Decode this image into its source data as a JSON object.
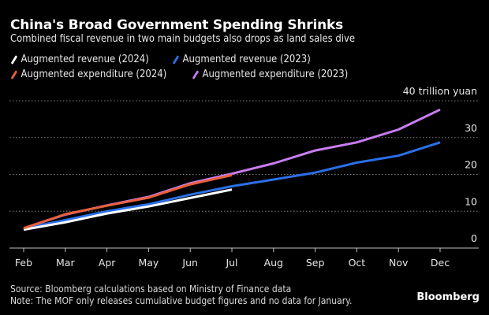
{
  "header": {
    "title": "China's Broad Government Spending Shrinks",
    "subtitle": "Combined fiscal revenue in two main budgets also drops as land sales dive"
  },
  "footer": {
    "source": "Source: Bloomberg calculations based on Ministry of Finance data",
    "note": "Note: The MOF only releases cumulative budget figures and no data for January.",
    "brand": "Bloomberg"
  },
  "chart_data": {
    "type": "line",
    "title": "China's Broad Government Spending Shrinks",
    "subtitle": "Combined fiscal revenue in two main budgets also drops as land sales dive",
    "xlabel": "",
    "ylabel": "trillion yuan",
    "y_unit_label": "40 trillion yuan",
    "ylim": [
      0,
      40
    ],
    "yticks": [
      0,
      10,
      20,
      30,
      40
    ],
    "ytick_labels": [
      "0",
      "10",
      "20",
      "30",
      "40 trillion yuan"
    ],
    "grid": true,
    "legend_position": "top-left",
    "categories": [
      "Feb",
      "Mar",
      "Apr",
      "May",
      "Jun",
      "Jul",
      "Aug",
      "Sep",
      "Oct",
      "Nov",
      "Dec"
    ],
    "series": [
      {
        "name": "Augmented revenue (2023)",
        "color": "#2b6fe8",
        "values": [
          5.3,
          7.6,
          10.0,
          11.9,
          14.5,
          16.8,
          18.6,
          20.5,
          23.2,
          25.1,
          28.7
        ]
      },
      {
        "name": "Augmented expenditure (2023)",
        "color": "#c77df0",
        "values": [
          5.4,
          9.1,
          11.6,
          13.9,
          17.6,
          20.2,
          23.0,
          26.5,
          28.7,
          32.2,
          37.6
        ]
      },
      {
        "name": "Augmented revenue (2024)",
        "color": "#ffffff",
        "values": [
          5.0,
          7.0,
          9.4,
          11.3,
          13.6,
          15.9,
          null,
          null,
          null,
          null,
          null
        ]
      },
      {
        "name": "Augmented expenditure (2024)",
        "color": "#e8603c",
        "values": [
          5.4,
          9.2,
          11.5,
          13.7,
          17.3,
          19.8,
          null,
          null,
          null,
          null,
          null
        ]
      }
    ],
    "legend": [
      {
        "name": "Augmented revenue (2024)",
        "color": "#ffffff"
      },
      {
        "name": "Augmented revenue (2023)",
        "color": "#2b6fe8"
      },
      {
        "name": "Augmented expenditure (2024)",
        "color": "#e8603c"
      },
      {
        "name": "Augmented expenditure (2023)",
        "color": "#c77df0"
      }
    ]
  }
}
